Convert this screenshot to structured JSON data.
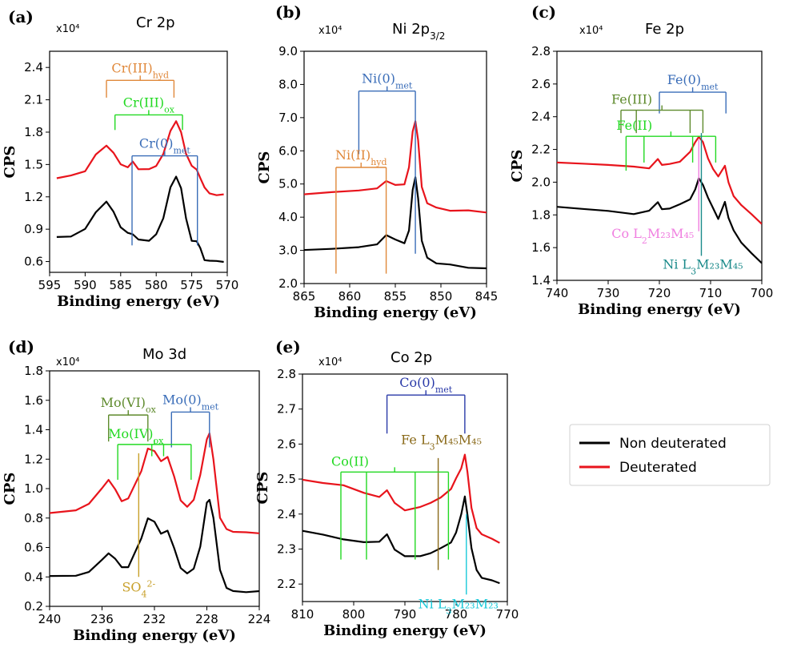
{
  "legend": {
    "items": [
      {
        "label": "Non deuterated",
        "color": "#000000"
      },
      {
        "label": "Deuterated",
        "color": "#e8141c"
      }
    ]
  },
  "chart_data": [
    {
      "id": "a",
      "panel_letter": "(a)",
      "title": "Cr 2p",
      "type": "line",
      "scale_label": "x10⁴",
      "xlabel": "Binding energy (eV)",
      "ylabel": "CPS",
      "xlim": [
        595,
        570
      ],
      "ylim": [
        0.5,
        2.55
      ],
      "xticks": [
        595,
        590,
        585,
        580,
        575,
        570
      ],
      "yticks": [
        0.6,
        0.9,
        1.2,
        1.5,
        1.8,
        2.1,
        2.4
      ],
      "ytick_labels": [
        "0.6",
        "0.9",
        "1.2",
        "1.5",
        "1.8",
        "2.1",
        "2.4"
      ],
      "series": [
        {
          "name": "Non deuterated",
          "color": "#000000",
          "x": [
            594,
            592,
            590,
            588.5,
            587,
            586,
            585,
            584,
            583.3,
            582.5,
            581,
            580,
            579,
            578,
            577.2,
            576.5,
            575.8,
            575,
            574.3,
            573.8,
            573.2,
            572.5,
            571.5,
            570.5
          ],
          "y": [
            0.82,
            0.84,
            0.9,
            1.05,
            1.16,
            1.07,
            0.92,
            0.86,
            0.86,
            0.8,
            0.8,
            0.86,
            1.0,
            1.28,
            1.39,
            1.28,
            1.0,
            0.8,
            0.78,
            0.72,
            0.62,
            0.6,
            0.6,
            0.6
          ]
        },
        {
          "name": "Deuterated",
          "color": "#e8141c",
          "x": [
            594,
            592,
            590,
            588.5,
            587,
            586,
            585,
            584,
            583.3,
            582.5,
            581,
            580,
            579,
            578,
            577.2,
            576.5,
            575.8,
            575,
            574.3,
            573.8,
            573.2,
            572.5,
            571.5,
            570.5
          ],
          "y": [
            1.38,
            1.39,
            1.44,
            1.6,
            1.67,
            1.6,
            1.5,
            1.48,
            1.52,
            1.46,
            1.45,
            1.48,
            1.6,
            1.82,
            1.9,
            1.8,
            1.6,
            1.48,
            1.46,
            1.38,
            1.28,
            1.24,
            1.22,
            1.22
          ]
        }
      ],
      "annotations": [
        {
          "text": "Cr(III)",
          "sub": "hyd",
          "color": "#e0883a",
          "bar_y": 2.28,
          "drops": [
            [
              587,
              2.12
            ],
            [
              577.5,
              2.12
            ]
          ]
        },
        {
          "text": "Cr(III)",
          "sub": "ox",
          "color": "#22d922",
          "bar_y": 1.96,
          "drops": [
            [
              585.8,
              1.82
            ],
            [
              576.3,
              1.82
            ]
          ]
        },
        {
          "text": "Cr(0)",
          "sub": "met",
          "color": "#3a6db8",
          "bar_y": 1.58,
          "drops": [
            [
              583.4,
              0.75
            ],
            [
              574.2,
              0.75
            ]
          ]
        }
      ]
    },
    {
      "id": "b",
      "panel_letter": "(b)",
      "title": "Ni 2p",
      "title_sub": "3/2",
      "type": "line",
      "scale_label": "x10⁴",
      "xlabel": "Binding energy (eV)",
      "ylabel": "CPS",
      "xlim": [
        865,
        845
      ],
      "ylim": [
        2.0,
        9.0
      ],
      "xticks": [
        865,
        860,
        855,
        850,
        845
      ],
      "yticks": [
        2.0,
        3.0,
        4.0,
        5.0,
        6.0,
        7.0,
        8.0,
        9.0
      ],
      "ytick_labels": [
        "2.0",
        "3.0",
        "4.0",
        "5.0",
        "6.0",
        "7.0",
        "8.0",
        "9.0"
      ],
      "series": [
        {
          "name": "Non deuterated",
          "color": "#000000",
          "x": [
            865,
            862,
            859,
            857,
            856,
            855,
            854,
            853.5,
            853.1,
            852.8,
            852.5,
            852.1,
            851.5,
            850.5,
            849,
            847,
            845
          ],
          "y": [
            3.0,
            3.05,
            3.1,
            3.2,
            3.45,
            3.3,
            3.2,
            3.6,
            4.8,
            5.2,
            4.6,
            3.3,
            2.8,
            2.6,
            2.55,
            2.5,
            2.45
          ]
        },
        {
          "name": "Deuterated",
          "color": "#e8141c",
          "x": [
            865,
            862,
            859,
            857,
            856,
            855,
            854,
            853.5,
            853.1,
            852.8,
            852.5,
            852.1,
            851.5,
            850.5,
            849,
            847,
            845
          ],
          "y": [
            4.7,
            4.75,
            4.8,
            4.85,
            5.1,
            5.0,
            5.0,
            5.5,
            6.6,
            6.9,
            6.3,
            4.9,
            4.4,
            4.3,
            4.22,
            4.18,
            4.15
          ]
        }
      ],
      "annotations": [
        {
          "text": "Ni(0)",
          "sub": "met",
          "color": "#3a6db8",
          "bar_y": 7.8,
          "drops": [
            [
              859,
              5.9
            ],
            [
              852.8,
              2.9
            ]
          ]
        },
        {
          "text": "Ni(II)",
          "sub": "hyd",
          "color": "#e0883a",
          "bar_y": 5.5,
          "drops": [
            [
              861.5,
              2.3
            ],
            [
              856,
              2.3
            ]
          ]
        }
      ]
    },
    {
      "id": "c",
      "panel_letter": "(c)",
      "title": "Fe 2p",
      "type": "line",
      "scale_label": "x10⁴",
      "xlabel": "Binding energy (eV)",
      "ylabel": "CPS",
      "xlim": [
        740,
        700
      ],
      "ylim": [
        1.4,
        2.8
      ],
      "xticks": [
        740,
        730,
        720,
        710,
        700
      ],
      "yticks": [
        1.4,
        1.6,
        1.8,
        2.0,
        2.2,
        2.4,
        2.6,
        2.8
      ],
      "ytick_labels": [
        "1.4",
        "1.6",
        "1.8",
        "2.0",
        "2.2",
        "2.4",
        "2.6",
        "2.8"
      ],
      "series": [
        {
          "name": "Non deuterated",
          "color": "#000000",
          "x": [
            740,
            735,
            730,
            725,
            722,
            720.3,
            719.5,
            718,
            716,
            714,
            713,
            712.3,
            711.5,
            710.5,
            709.5,
            708.5,
            707.2,
            706.5,
            705.5,
            704,
            702,
            700
          ],
          "y": [
            1.85,
            1.84,
            1.83,
            1.81,
            1.82,
            1.88,
            1.84,
            1.84,
            1.86,
            1.9,
            1.96,
            2.02,
            1.98,
            1.9,
            1.84,
            1.78,
            1.88,
            1.78,
            1.7,
            1.63,
            1.57,
            1.5
          ]
        },
        {
          "name": "Deuterated",
          "color": "#e8141c",
          "x": [
            740,
            735,
            730,
            725,
            722,
            720.3,
            719.5,
            718,
            716,
            714,
            713,
            712.3,
            711.5,
            710.5,
            709.5,
            708.5,
            707.2,
            706.5,
            705.5,
            704,
            702,
            700
          ],
          "y": [
            2.12,
            2.11,
            2.1,
            2.09,
            2.09,
            2.14,
            2.1,
            2.11,
            2.13,
            2.18,
            2.24,
            2.28,
            2.25,
            2.15,
            2.08,
            2.03,
            2.1,
            2.0,
            1.92,
            1.86,
            1.8,
            1.75
          ]
        }
      ],
      "annotations": [
        {
          "text": "Fe(0)",
          "sub": "met",
          "color": "#3a6db8",
          "bar_y": 2.55,
          "drops": [
            [
              720,
              2.42
            ],
            [
              707,
              2.42
            ]
          ]
        },
        {
          "text": "Fe(III)",
          "sub": "",
          "color": "#5e8a2c",
          "bar_y": 2.44,
          "drops": [
            [
              727.5,
              2.3
            ],
            [
              724.5,
              2.3
            ],
            [
              714,
              2.3
            ],
            [
              711.5,
              2.3
            ]
          ],
          "label_anchor": "left"
        },
        {
          "text": "Fe(II)",
          "sub": "",
          "color": "#22d922",
          "bar_y": 2.28,
          "drops": [
            [
              726.5,
              2.07
            ],
            [
              723,
              2.12
            ],
            [
              713.5,
              2.12
            ],
            [
              709,
              2.12
            ]
          ],
          "label_anchor": "left"
        },
        {
          "text": "Co L",
          "sub": "2",
          "tail": "M₂₃M₄₅",
          "color": "#f07fe0",
          "bar_y": null,
          "line_x": 712.3,
          "line_top": 2.26,
          "line_bottom": 1.7
        },
        {
          "text": "Ni L",
          "sub": "3",
          "tail": "M₂₃M₄₅",
          "color": "#1a8a8a",
          "bar_y": null,
          "line_x": 711.8,
          "line_top": 2.3,
          "line_bottom": 1.55
        }
      ]
    },
    {
      "id": "d",
      "panel_letter": "(d)",
      "title": "Mo 3d",
      "type": "line",
      "scale_label": "x10⁴",
      "xlabel": "Binding energy (eV)",
      "ylabel": "CPS",
      "xlim": [
        240,
        224
      ],
      "ylim": [
        0.2,
        1.8
      ],
      "xticks": [
        240,
        236,
        232,
        228,
        224
      ],
      "yticks": [
        0.2,
        0.4,
        0.6,
        0.8,
        1.0,
        1.2,
        1.4,
        1.6,
        1.8
      ],
      "ytick_labels": [
        "0.2",
        "0.4",
        "0.6",
        "0.8",
        "1.0",
        "1.2",
        "1.4",
        "1.6",
        "1.8"
      ],
      "series": [
        {
          "name": "Non deuterated",
          "color": "#000000",
          "x": [
            240,
            238,
            237,
            236,
            235.5,
            235,
            234.5,
            234,
            233,
            232.5,
            232,
            231.5,
            231,
            230.5,
            230,
            229.5,
            229,
            228.5,
            228,
            227.8,
            227.5,
            227,
            226.5,
            226,
            225,
            224
          ],
          "y": [
            0.4,
            0.41,
            0.44,
            0.52,
            0.56,
            0.52,
            0.46,
            0.46,
            0.66,
            0.8,
            0.78,
            0.7,
            0.72,
            0.6,
            0.46,
            0.42,
            0.45,
            0.6,
            0.9,
            0.93,
            0.8,
            0.45,
            0.33,
            0.31,
            0.3,
            0.3
          ]
        },
        {
          "name": "Deuterated",
          "color": "#e8141c",
          "x": [
            240,
            238,
            237,
            236,
            235.5,
            235,
            234.5,
            234,
            233,
            232.5,
            232,
            231.5,
            231,
            230.5,
            230,
            229.5,
            229,
            228.5,
            228,
            227.8,
            227.5,
            227,
            226.5,
            226,
            225,
            224
          ],
          "y": [
            0.84,
            0.85,
            0.89,
            1.0,
            1.06,
            1.0,
            0.92,
            0.94,
            1.12,
            1.27,
            1.25,
            1.18,
            1.21,
            1.08,
            0.92,
            0.88,
            0.93,
            1.1,
            1.34,
            1.37,
            1.2,
            0.8,
            0.72,
            0.7,
            0.7,
            0.7
          ]
        }
      ],
      "annotations": [
        {
          "text": "Mo(VI)",
          "sub": "ox",
          "color": "#5e8a2c",
          "bar_y": 1.5,
          "drops": [
            [
              235.5,
              1.32
            ],
            [
              232.5,
              1.32
            ]
          ]
        },
        {
          "text": "Mo(0)",
          "sub": "met",
          "color": "#3a6db8",
          "bar_y": 1.52,
          "drops": [
            [
              230.7,
              1.28
            ],
            [
              227.8,
              1.28
            ]
          ]
        },
        {
          "text": "Mo(IV)",
          "sub": "ox",
          "color": "#22d922",
          "bar_y": 1.3,
          "drops": [
            [
              234.8,
              1.06
            ],
            [
              232.2,
              1.22
            ],
            [
              231.3,
              1.22
            ],
            [
              229.2,
              1.06
            ]
          ],
          "label_anchor": "left"
        },
        {
          "text": "SO",
          "sub": "4",
          "sup": "2-",
          "color": "#c8a02a",
          "bar_y": null,
          "line_x": 233.2,
          "line_top": 1.24,
          "line_bottom": 0.4
        }
      ]
    },
    {
      "id": "e",
      "panel_letter": "(e)",
      "title": "Co 2p",
      "type": "line",
      "scale_label": "x10⁴",
      "xlabel": "Binding energy (eV)",
      "ylabel": "CPS",
      "xlim": [
        810,
        770
      ],
      "ylim": [
        2.15,
        2.8
      ],
      "xticks": [
        810,
        800,
        790,
        780,
        770
      ],
      "yticks": [
        2.2,
        2.3,
        2.4,
        2.5,
        2.6,
        2.7,
        2.8
      ],
      "ytick_labels": [
        "2.2",
        "2.3",
        "2.4",
        "2.5",
        "2.6",
        "2.7",
        "2.8"
      ],
      "series": [
        {
          "name": "Non deuterated",
          "color": "#000000",
          "x": [
            810,
            806,
            802,
            798,
            795,
            793.5,
            792,
            790,
            787,
            785,
            783,
            781,
            780,
            779,
            778.3,
            777.8,
            777,
            776,
            775,
            773,
            771.5
          ],
          "y": [
            2.35,
            2.34,
            2.33,
            2.32,
            2.32,
            2.34,
            2.3,
            2.28,
            2.28,
            2.29,
            2.3,
            2.32,
            2.35,
            2.4,
            2.45,
            2.4,
            2.3,
            2.24,
            2.22,
            2.21,
            2.2
          ]
        },
        {
          "name": "Deuterated",
          "color": "#e8141c",
          "x": [
            810,
            806,
            802,
            798,
            795,
            793.5,
            792,
            790,
            787,
            785,
            783,
            781,
            780,
            779,
            778.3,
            777.8,
            777,
            776,
            775,
            773,
            771.5
          ],
          "y": [
            2.5,
            2.49,
            2.48,
            2.46,
            2.45,
            2.47,
            2.43,
            2.41,
            2.42,
            2.43,
            2.45,
            2.47,
            2.5,
            2.53,
            2.57,
            2.52,
            2.42,
            2.36,
            2.34,
            2.33,
            2.32
          ]
        }
      ],
      "annotations": [
        {
          "text": "Co(0)",
          "sub": "met",
          "color": "#2a3aa8",
          "bar_y": 2.74,
          "drops": [
            [
              793.5,
              2.63
            ],
            [
              778.3,
              2.63
            ]
          ]
        },
        {
          "text": "Fe L",
          "sub": "3",
          "tail": "M₄₅M₄₅",
          "color": "#8a6a1a",
          "bar_y": null,
          "line_x": 783.5,
          "line_top": 2.56,
          "line_bottom": 2.24
        },
        {
          "text": "Co(II)",
          "sub": "",
          "color": "#22d922",
          "bar_y": 2.52,
          "drops": [
            [
              802.5,
              2.27
            ],
            [
              797.5,
              2.27
            ],
            [
              788,
              2.27
            ],
            [
              781.5,
              2.27
            ]
          ],
          "label_anchor": "left"
        },
        {
          "text": "Ni L",
          "sub": "3",
          "tail": "M₂₃M₂₃",
          "color": "#1ac8d8",
          "bar_y": null,
          "line_x": 778.0,
          "line_top": 2.4,
          "line_bottom": 2.17
        }
      ]
    }
  ]
}
